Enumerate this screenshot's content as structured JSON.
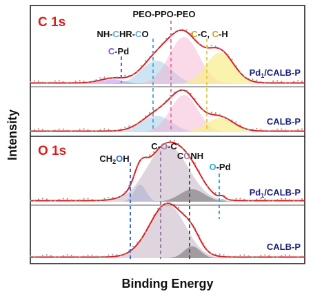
{
  "chart_data": [
    {
      "type": "line",
      "panel": "C 1s",
      "title": "C 1s",
      "xlabel": "Binding Energy",
      "ylabel": "Intensity",
      "x_ticks_shown": false,
      "y_ticks_shown": false,
      "peak_labels": [
        {
          "text": "C-Pd",
          "color": "#8a4fe0"
        },
        {
          "text": "NH-CHR-CO",
          "color": "#5aa9d8"
        },
        {
          "text": "PEO-PPO-PEO",
          "color": "#e07aa8"
        },
        {
          "text": "C-C, C-H",
          "color": "#c9a228"
        }
      ],
      "series": [
        {
          "name": "Pd1/CALB-P",
          "components": [
            {
              "label": "C-Pd",
              "color": "#8a4fe0",
              "rel_position": 0.3,
              "rel_height": 0.1
            },
            {
              "label": "NH-CHR-CO",
              "color": "#5aa9d8",
              "rel_position": 0.46,
              "rel_height": 0.5
            },
            {
              "label": "PEO-PPO-PEO",
              "color": "#e07aa8",
              "rel_position": 0.56,
              "rel_height": 1.0
            },
            {
              "label": "C-C, C-H",
              "color": "#c9a228",
              "rel_position": 0.69,
              "rel_height": 0.67
            }
          ]
        },
        {
          "name": "CALB-P",
          "components": [
            {
              "label": "NH-CHR-CO",
              "color": "#5aa9d8",
              "rel_position": 0.46,
              "rel_height": 0.44
            },
            {
              "label": "PEO-PPO-PEO",
              "color": "#e07aa8",
              "rel_position": 0.56,
              "rel_height": 1.0
            },
            {
              "label": "C-C, C-H",
              "color": "#c9a228",
              "rel_position": 0.69,
              "rel_height": 0.38
            }
          ]
        }
      ]
    },
    {
      "type": "line",
      "panel": "O 1s",
      "title": "O 1s",
      "xlabel": "Binding Energy",
      "ylabel": "Intensity",
      "x_ticks_shown": false,
      "y_ticks_shown": false,
      "peak_labels": [
        {
          "text": "CH2OH",
          "color": "#3a6fd6"
        },
        {
          "text": "C-O-C",
          "color": "#9a7fa0"
        },
        {
          "text": "CONH",
          "color": "#555555"
        },
        {
          "text": "O-Pd",
          "color": "#2aaed8"
        }
      ],
      "series": [
        {
          "name": "Pd1/CALB-P",
          "components": [
            {
              "label": "CH2OH",
              "color": "#3a6fd6",
              "rel_position": 0.4,
              "rel_height": 0.3
            },
            {
              "label": "C-O-C",
              "color": "#9a7fa0",
              "rel_position": 0.5,
              "rel_height": 1.0
            },
            {
              "label": "CONH",
              "color": "#555555",
              "rel_position": 0.59,
              "rel_height": 0.22
            },
            {
              "label": "O-Pd",
              "color": "#2aaed8",
              "rel_position": 0.7,
              "rel_height": 0.05
            }
          ]
        },
        {
          "name": "CALB-P",
          "components": [
            {
              "label": "C-O-C",
              "color": "#9a7fa0",
              "rel_position": 0.5,
              "rel_height": 1.0
            },
            {
              "label": "CONH",
              "color": "#555555",
              "rel_position": 0.59,
              "rel_height": 0.22
            }
          ]
        }
      ]
    }
  ],
  "figure": {
    "ylabel": "Intensity",
    "xlabel": "Binding Energy",
    "c_panel_title": "C 1s",
    "o_panel_title": "O 1s",
    "c_labels": {
      "cpd_prefix": "C",
      "cpd_suffix": "-Pd",
      "nh_prefix": "NH-",
      "nh_c1": "C",
      "nh_mid": "HR-",
      "nh_c2": "C",
      "nh_suffix": "O",
      "peo": "PEO-PPO-PEO",
      "cc_c1": "C",
      "cc_mid": "-C, ",
      "cc_c2": "C",
      "cc_suffix": "-H"
    },
    "o_labels": {
      "ch2oh_a": "CH",
      "ch2oh_sub": "2",
      "ch2oh_o": "O",
      "ch2oh_h": "H",
      "coc_c1": "C-",
      "coc_o": "O",
      "coc_c2": "-C",
      "conh_c": "C",
      "conh_o": "O",
      "conh_nh": "NH",
      "opd_o": "O",
      "opd_rest": "-Pd"
    },
    "sample_labels": {
      "pd1_prefix": "Pd",
      "pd1_sub": "1",
      "pd1_suffix": "/CALB-P",
      "calb": "CALB-P"
    },
    "colors": {
      "title_red": "#e01a1a",
      "envelope": "#e01a1a",
      "sample_label": "#1a237e",
      "cpd": "#8a4fe0",
      "nh": "#5aa9d8",
      "peo": "#e07aa8",
      "cc": "#c9a228",
      "ch2oh": "#3a6fd6",
      "coc": "#9a7fa0",
      "conh": "#555555",
      "opd": "#2aaed8"
    }
  }
}
